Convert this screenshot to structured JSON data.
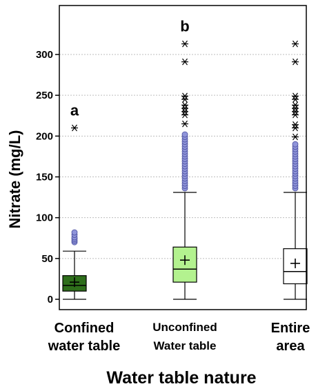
{
  "chart_data": {
    "type": "boxplot",
    "title": "",
    "xlabel": "Water table nature",
    "ylabel": "Nitrate (mg/L)",
    "ylim": [
      -10,
      360
    ],
    "yticks": [
      0,
      50,
      100,
      150,
      200,
      250,
      300
    ],
    "grid": "horizontal dotted",
    "legend": "none",
    "categories": [
      {
        "line1": "Confined",
        "line2": "water table"
      },
      {
        "line1": "Unconfined",
        "line2": "Water table"
      },
      {
        "line1": "Entire",
        "line2": "area"
      }
    ],
    "boxes": [
      {
        "letter": "a",
        "fill": "#2e6e1b",
        "min": 0,
        "q1": 10,
        "median": 17,
        "q3": 29,
        "max": 59,
        "mean": 21,
        "outliers": [
          70,
          72,
          74,
          76,
          79,
          82
        ],
        "extremes": [
          210
        ]
      },
      {
        "letter": "b",
        "fill": "#b3f28f",
        "min": 0,
        "q1": 21,
        "median": 37,
        "q3": 64,
        "max": 131,
        "mean": 48,
        "outliers": [
          136,
          139,
          142,
          145,
          148,
          151,
          154,
          157,
          160,
          163,
          166,
          169,
          172,
          175,
          178,
          181,
          184,
          187,
          190,
          193,
          196,
          199,
          202
        ],
        "extremes": [
          215,
          226,
          230,
          234,
          238,
          245,
          249,
          291,
          313
        ]
      },
      {
        "letter": "",
        "fill": "#ffffff",
        "min": 0,
        "q1": 19,
        "median": 34,
        "q3": 62,
        "max": 131,
        "mean": 44,
        "outliers": [
          136,
          139,
          142,
          145,
          148,
          151,
          154,
          157,
          160,
          163,
          166,
          169,
          172,
          175,
          178,
          181,
          184,
          187,
          190
        ],
        "extremes": [
          199,
          210,
          214,
          226,
          230,
          234,
          238,
          245,
          249,
          291,
          313
        ]
      }
    ],
    "colors": {
      "outlier_fill": "#8f94d9",
      "outlier_stroke": "#4a4f9e",
      "grid": "#bdbdbd"
    }
  }
}
